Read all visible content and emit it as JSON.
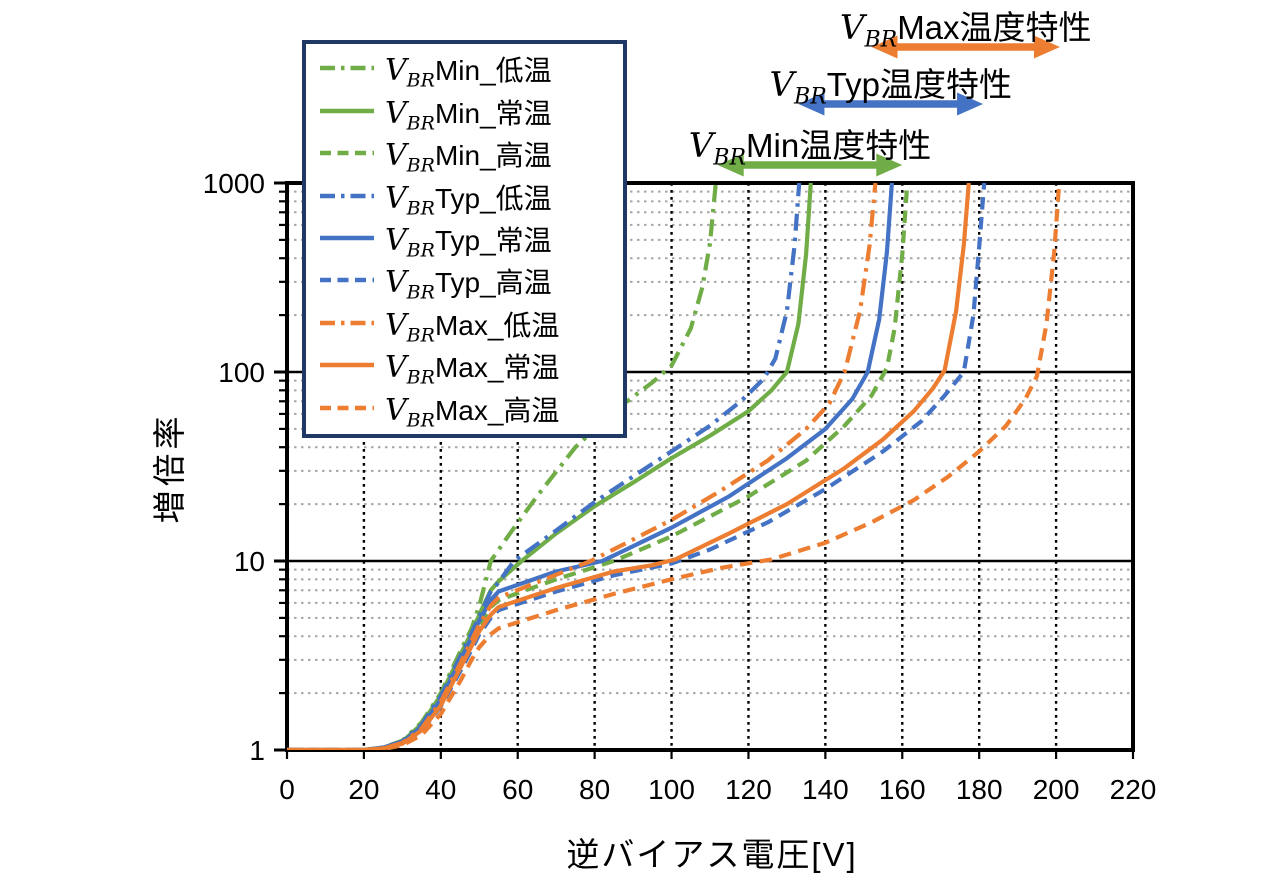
{
  "chart_data": {
    "type": "line",
    "title": "",
    "xlabel": "逆バイアス電圧[V]",
    "ylabel": "増倍率",
    "x_ticks": [
      0,
      20,
      40,
      60,
      80,
      100,
      120,
      140,
      160,
      180,
      200,
      220
    ],
    "y_ticks": [
      1,
      10,
      100,
      1000
    ],
    "xlim": [
      0,
      220
    ],
    "ylim": [
      1,
      1000
    ],
    "y_scale": "log",
    "grid": {
      "major_color": "#000000",
      "minor_color": "#A6A6A6",
      "vertical_color": "#000000",
      "frame_color": "#000000"
    },
    "legend_position": "top-left",
    "series": [
      {
        "id": "min-low",
        "v_symbol": "V",
        "v_subscript": "BR",
        "label": "Min_低温",
        "color": "#70AD47",
        "dash": "dashdot",
        "vbr": 112,
        "points": [
          [
            0,
            1
          ],
          [
            20,
            1
          ],
          [
            25,
            1.03
          ],
          [
            30,
            1.12
          ],
          [
            35,
            1.4
          ],
          [
            40,
            2.0
          ],
          [
            45,
            3.3
          ],
          [
            48,
            4.4
          ],
          [
            50,
            5.8
          ],
          [
            53,
            10
          ],
          [
            58,
            14
          ],
          [
            65,
            22
          ],
          [
            75,
            40
          ],
          [
            85,
            62
          ],
          [
            95,
            88
          ],
          [
            100,
            108
          ],
          [
            105,
            170
          ],
          [
            108,
            280
          ],
          [
            110,
            480
          ],
          [
            111.5,
            1000
          ]
        ]
      },
      {
        "id": "min-normal",
        "v_symbol": "V",
        "v_subscript": "BR",
        "label": "Min_常温",
        "color": "#70AD47",
        "dash": "solid",
        "vbr": 136,
        "points": [
          [
            0,
            1
          ],
          [
            20,
            1
          ],
          [
            25,
            1.03
          ],
          [
            30,
            1.11
          ],
          [
            35,
            1.37
          ],
          [
            40,
            1.95
          ],
          [
            45,
            3.15
          ],
          [
            48,
            4.2
          ],
          [
            50,
            5.2
          ],
          [
            53,
            7.0
          ],
          [
            55,
            7.8
          ],
          [
            61,
            10
          ],
          [
            70,
            14
          ],
          [
            80,
            19.5
          ],
          [
            90,
            26
          ],
          [
            100,
            35
          ],
          [
            110,
            46
          ],
          [
            120,
            62
          ],
          [
            126,
            80
          ],
          [
            130,
            100
          ],
          [
            133,
            180
          ],
          [
            135,
            420
          ],
          [
            136.2,
            1000
          ]
        ]
      },
      {
        "id": "min-high",
        "v_symbol": "V",
        "v_subscript": "BR",
        "label": "Min_高温",
        "color": "#70AD47",
        "dash": "dashed",
        "vbr": 161,
        "points": [
          [
            0,
            1
          ],
          [
            20,
            1
          ],
          [
            25,
            1.02
          ],
          [
            30,
            1.09
          ],
          [
            35,
            1.3
          ],
          [
            40,
            1.8
          ],
          [
            45,
            2.85
          ],
          [
            48,
            3.8
          ],
          [
            50,
            4.6
          ],
          [
            53,
            5.7
          ],
          [
            55,
            6.2
          ],
          [
            70,
            8.0
          ],
          [
            85,
            10
          ],
          [
            100,
            13.5
          ],
          [
            120,
            22
          ],
          [
            135,
            34
          ],
          [
            145,
            52
          ],
          [
            152,
            75
          ],
          [
            156,
            105
          ],
          [
            158,
            170
          ],
          [
            160,
            420
          ],
          [
            161.3,
            1000
          ]
        ]
      },
      {
        "id": "typ-low",
        "v_symbol": "V",
        "v_subscript": "BR",
        "label": "Typ_低温",
        "color": "#4472C4",
        "dash": "dashdot",
        "vbr": 133,
        "points": [
          [
            0,
            1
          ],
          [
            20,
            1
          ],
          [
            25,
            1.03
          ],
          [
            30,
            1.11
          ],
          [
            35,
            1.36
          ],
          [
            40,
            1.93
          ],
          [
            45,
            3.1
          ],
          [
            48,
            4.15
          ],
          [
            50,
            5.1
          ],
          [
            53,
            6.9
          ],
          [
            55,
            7.7
          ],
          [
            59,
            10
          ],
          [
            70,
            14.5
          ],
          [
            80,
            20.5
          ],
          [
            90,
            28
          ],
          [
            100,
            38
          ],
          [
            110,
            52
          ],
          [
            118,
            70
          ],
          [
            124,
            92
          ],
          [
            127,
            118
          ],
          [
            130,
            210
          ],
          [
            132,
            470
          ],
          [
            133.2,
            1000
          ]
        ]
      },
      {
        "id": "typ-normal",
        "v_symbol": "V",
        "v_subscript": "BR",
        "label": "Typ_常温",
        "color": "#4472C4",
        "dash": "solid",
        "vbr": 157,
        "points": [
          [
            0,
            1
          ],
          [
            20,
            1
          ],
          [
            25,
            1.03
          ],
          [
            30,
            1.1
          ],
          [
            35,
            1.33
          ],
          [
            40,
            1.85
          ],
          [
            45,
            2.95
          ],
          [
            48,
            3.95
          ],
          [
            50,
            4.85
          ],
          [
            53,
            6.2
          ],
          [
            55,
            6.9
          ],
          [
            70,
            8.8
          ],
          [
            82,
            10
          ],
          [
            100,
            15
          ],
          [
            115,
            22
          ],
          [
            130,
            35
          ],
          [
            140,
            50
          ],
          [
            147,
            72
          ],
          [
            151,
            100
          ],
          [
            154,
            190
          ],
          [
            156,
            430
          ],
          [
            157.3,
            1000
          ]
        ]
      },
      {
        "id": "typ-high",
        "v_symbol": "V",
        "v_subscript": "BR",
        "label": "Typ_高温",
        "color": "#4472C4",
        "dash": "dashed",
        "vbr": 181,
        "points": [
          [
            0,
            1
          ],
          [
            20,
            1
          ],
          [
            25,
            1.02
          ],
          [
            30,
            1.08
          ],
          [
            35,
            1.26
          ],
          [
            40,
            1.7
          ],
          [
            45,
            2.6
          ],
          [
            48,
            3.4
          ],
          [
            50,
            4.1
          ],
          [
            53,
            5.0
          ],
          [
            55,
            5.5
          ],
          [
            70,
            6.9
          ],
          [
            85,
            8.4
          ],
          [
            100,
            9.7
          ],
          [
            110,
            11.5
          ],
          [
            125,
            16
          ],
          [
            140,
            24
          ],
          [
            155,
            38
          ],
          [
            165,
            55
          ],
          [
            171,
            75
          ],
          [
            176,
            100
          ],
          [
            178.5,
            200
          ],
          [
            180,
            460
          ],
          [
            181.3,
            1000
          ]
        ]
      },
      {
        "id": "max-low",
        "v_symbol": "V",
        "v_subscript": "BR",
        "label": "Max_低温",
        "color": "#ED7D31",
        "dash": "dashdot",
        "vbr": 153,
        "points": [
          [
            0,
            1
          ],
          [
            20,
            1
          ],
          [
            25,
            1.02
          ],
          [
            30,
            1.09
          ],
          [
            35,
            1.3
          ],
          [
            40,
            1.8
          ],
          [
            45,
            2.85
          ],
          [
            48,
            3.8
          ],
          [
            50,
            4.6
          ],
          [
            53,
            5.8
          ],
          [
            55,
            6.4
          ],
          [
            67,
            8.0
          ],
          [
            79,
            10
          ],
          [
            90,
            13
          ],
          [
            100,
            16.5
          ],
          [
            112,
            23
          ],
          [
            125,
            34
          ],
          [
            135,
            50
          ],
          [
            141,
            68
          ],
          [
            145,
            100
          ],
          [
            149,
            210
          ],
          [
            151.5,
            470
          ],
          [
            153,
            1000
          ]
        ]
      },
      {
        "id": "max-normal",
        "v_symbol": "V",
        "v_subscript": "BR",
        "label": "Max_常温",
        "color": "#ED7D31",
        "dash": "solid",
        "vbr": 177,
        "points": [
          [
            0,
            1
          ],
          [
            20,
            1
          ],
          [
            25,
            1.02
          ],
          [
            30,
            1.08
          ],
          [
            35,
            1.27
          ],
          [
            40,
            1.72
          ],
          [
            45,
            2.7
          ],
          [
            48,
            3.55
          ],
          [
            50,
            4.25
          ],
          [
            53,
            5.2
          ],
          [
            55,
            5.7
          ],
          [
            70,
            7.2
          ],
          [
            85,
            8.8
          ],
          [
            95,
            9.5
          ],
          [
            101,
            10.2
          ],
          [
            115,
            14
          ],
          [
            130,
            20
          ],
          [
            145,
            31
          ],
          [
            155,
            44
          ],
          [
            163,
            62
          ],
          [
            168,
            82
          ],
          [
            171,
            102
          ],
          [
            174,
            210
          ],
          [
            176,
            470
          ],
          [
            177.3,
            1000
          ]
        ]
      },
      {
        "id": "max-high",
        "v_symbol": "V",
        "v_subscript": "BR",
        "label": "Max_高温",
        "color": "#ED7D31",
        "dash": "dashed",
        "vbr": 200,
        "points": [
          [
            0,
            1
          ],
          [
            20,
            1
          ],
          [
            25,
            1.01
          ],
          [
            30,
            1.06
          ],
          [
            35,
            1.2
          ],
          [
            40,
            1.55
          ],
          [
            45,
            2.3
          ],
          [
            48,
            3.0
          ],
          [
            50,
            3.5
          ],
          [
            53,
            4.1
          ],
          [
            55,
            4.4
          ],
          [
            70,
            5.5
          ],
          [
            85,
            6.7
          ],
          [
            100,
            8.0
          ],
          [
            113,
            9.2
          ],
          [
            126,
            10.2
          ],
          [
            140,
            12.5
          ],
          [
            152,
            16
          ],
          [
            163,
            21
          ],
          [
            172,
            28
          ],
          [
            180,
            38
          ],
          [
            187,
            52
          ],
          [
            192,
            72
          ],
          [
            195,
            95
          ],
          [
            197.5,
            180
          ],
          [
            199.5,
            430
          ],
          [
            200.8,
            1000
          ]
        ]
      }
    ]
  },
  "annotations": [
    {
      "id": "vbr-max-range",
      "v_symbol": "V",
      "v_subscript": "BR",
      "text": "Max温度特性",
      "color": "#ED7D31",
      "v_from": 152,
      "v_to": 201
    },
    {
      "id": "vbr-typ-range",
      "v_symbol": "V",
      "v_subscript": "BR",
      "text": "Typ温度特性",
      "color": "#4472C4",
      "v_from": 133,
      "v_to": 181
    },
    {
      "id": "vbr-min-range",
      "v_symbol": "V",
      "v_subscript": "BR",
      "text": "Min温度特性",
      "color": "#70AD47",
      "v_from": 112,
      "v_to": 160
    }
  ]
}
